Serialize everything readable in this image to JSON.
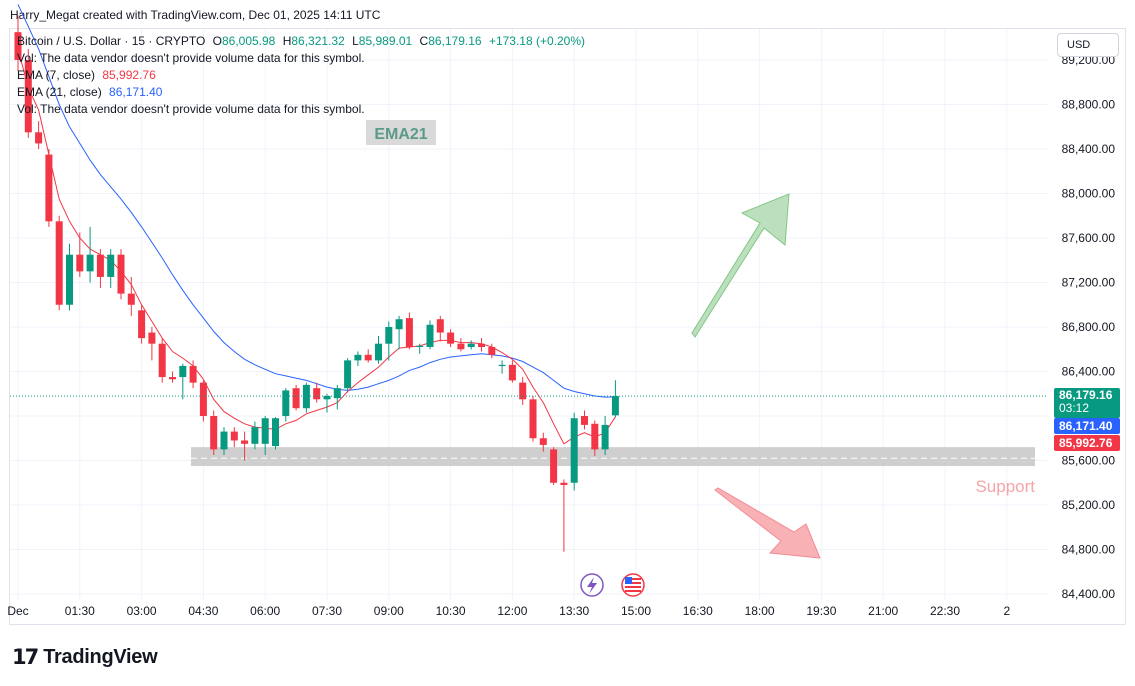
{
  "credit": "Harry_Megat created with TradingView.com, Dec 01, 2025 14:11 UTC",
  "legend": {
    "symbol": "Bitcoin / U.S. Dollar · 15 · CRYPTO",
    "open_label": "O",
    "open": "86,005.98",
    "high_label": "H",
    "high": "86,321.32",
    "low_label": "L",
    "low": "85,989.01",
    "close_label": "C",
    "close": "86,179.16",
    "change": "+173.18 (+0.20%)",
    "vol_note_1": "Vol: The data vendor doesn't provide volume data for this symbol.",
    "ema7_label": "EMA (7, close)",
    "ema7_value": "85,992.76",
    "ema21_label": "EMA (21, close)",
    "ema21_value": "86,171.40",
    "vol_note_2": "Vol: The data vendor doesn't provide volume data for this symbol."
  },
  "toolbar": {
    "currency_button": "USD"
  },
  "price_tags": {
    "last_price": "86,179.16",
    "countdown": "03:12",
    "ema21": "86,171.40",
    "ema7": "85,992.76"
  },
  "annotations": {
    "ema_label": "EMA21",
    "support_label": "Support"
  },
  "colors": {
    "up": "#089981",
    "down": "#f23645",
    "ema7": "#f23645",
    "ema21": "#2962ff",
    "support_zone": "#c7c7c7",
    "arrow_up": "#a5d6a7",
    "arrow_down": "#f7a4a9"
  },
  "icons": [
    "lightning-event-icon",
    "us-flag-icon"
  ],
  "footer": {
    "logo_mark": "17",
    "logo_text": "TradingView"
  },
  "chart_data": {
    "type": "candlestick",
    "symbol": "Bitcoin / U.S. Dollar",
    "interval": "15",
    "x_ticks": [
      "Dec",
      "01:30",
      "03:00",
      "04:30",
      "06:00",
      "07:30",
      "09:00",
      "10:30",
      "12:00",
      "13:30",
      "15:00",
      "16:30",
      "18:00",
      "19:30",
      "21:00",
      "22:30",
      "2"
    ],
    "y_ticks": [
      89200,
      88800,
      88400,
      88000,
      87600,
      87200,
      86800,
      86400,
      86000,
      85600,
      85200,
      84800,
      84400
    ],
    "y_tick_labels": [
      "89,200.00",
      "88,800.00",
      "88,400.00",
      "88,000.00",
      "87,600.00",
      "87,200.00",
      "86,800.00",
      "86,400.00",
      "86,000.00",
      "85,600.00",
      "85,200.00",
      "84,800.00",
      "84,400.00"
    ],
    "ylim": [
      84380,
      89480
    ],
    "x_start_time": "00:00",
    "candles": [
      {
        "t": "00:00",
        "o": 89450,
        "h": 89600,
        "l": 89100,
        "c": 89200
      },
      {
        "t": "00:15",
        "o": 89200,
        "h": 89300,
        "l": 88500,
        "c": 88550
      },
      {
        "t": "00:30",
        "o": 88550,
        "h": 88650,
        "l": 88400,
        "c": 88450
      },
      {
        "t": "00:45",
        "o": 88350,
        "h": 88400,
        "l": 87700,
        "c": 87750
      },
      {
        "t": "01:00",
        "o": 87750,
        "h": 87800,
        "l": 86950,
        "c": 87000
      },
      {
        "t": "01:15",
        "o": 87000,
        "h": 87550,
        "l": 86950,
        "c": 87450
      },
      {
        "t": "01:30",
        "o": 87450,
        "h": 87650,
        "l": 87250,
        "c": 87300
      },
      {
        "t": "01:45",
        "o": 87300,
        "h": 87700,
        "l": 87200,
        "c": 87450
      },
      {
        "t": "02:00",
        "o": 87450,
        "h": 87500,
        "l": 87150,
        "c": 87250
      },
      {
        "t": "02:15",
        "o": 87250,
        "h": 87500,
        "l": 87150,
        "c": 87450
      },
      {
        "t": "02:30",
        "o": 87450,
        "h": 87500,
        "l": 87050,
        "c": 87100
      },
      {
        "t": "02:45",
        "o": 87100,
        "h": 87250,
        "l": 86900,
        "c": 87000
      },
      {
        "t": "03:00",
        "o": 86950,
        "h": 87000,
        "l": 86650,
        "c": 86700
      },
      {
        "t": "03:15",
        "o": 86750,
        "h": 86800,
        "l": 86500,
        "c": 86650
      },
      {
        "t": "03:30",
        "o": 86650,
        "h": 86700,
        "l": 86300,
        "c": 86350
      },
      {
        "t": "03:45",
        "o": 86350,
        "h": 86400,
        "l": 86300,
        "c": 86330
      },
      {
        "t": "04:00",
        "o": 86350,
        "h": 86470,
        "l": 86150,
        "c": 86450
      },
      {
        "t": "04:15",
        "o": 86450,
        "h": 86500,
        "l": 86250,
        "c": 86300
      },
      {
        "t": "04:30",
        "o": 86300,
        "h": 86320,
        "l": 85950,
        "c": 86000
      },
      {
        "t": "04:45",
        "o": 86000,
        "h": 86050,
        "l": 85650,
        "c": 85700
      },
      {
        "t": "05:00",
        "o": 85700,
        "h": 85900,
        "l": 85650,
        "c": 85860
      },
      {
        "t": "05:15",
        "o": 85860,
        "h": 85900,
        "l": 85720,
        "c": 85780
      },
      {
        "t": "05:30",
        "o": 85780,
        "h": 85860,
        "l": 85600,
        "c": 85750
      },
      {
        "t": "05:45",
        "o": 85750,
        "h": 85950,
        "l": 85700,
        "c": 85900
      },
      {
        "t": "06:00",
        "o": 85750,
        "h": 86000,
        "l": 85650,
        "c": 85980
      },
      {
        "t": "06:15",
        "o": 85730,
        "h": 85990,
        "l": 85700,
        "c": 85980
      },
      {
        "t": "06:30",
        "o": 86000,
        "h": 86250,
        "l": 85950,
        "c": 86230
      },
      {
        "t": "06:45",
        "o": 86250,
        "h": 86280,
        "l": 86050,
        "c": 86070
      },
      {
        "t": "07:00",
        "o": 86070,
        "h": 86300,
        "l": 86030,
        "c": 86280
      },
      {
        "t": "07:15",
        "o": 86250,
        "h": 86300,
        "l": 86120,
        "c": 86150
      },
      {
        "t": "07:30",
        "o": 86150,
        "h": 86200,
        "l": 86030,
        "c": 86180
      },
      {
        "t": "07:45",
        "o": 86160,
        "h": 86280,
        "l": 86060,
        "c": 86250
      },
      {
        "t": "08:00",
        "o": 86250,
        "h": 86520,
        "l": 86220,
        "c": 86500
      },
      {
        "t": "08:15",
        "o": 86500,
        "h": 86580,
        "l": 86450,
        "c": 86550
      },
      {
        "t": "08:30",
        "o": 86550,
        "h": 86600,
        "l": 86480,
        "c": 86500
      },
      {
        "t": "08:45",
        "o": 86500,
        "h": 86720,
        "l": 86470,
        "c": 86650
      },
      {
        "t": "09:00",
        "o": 86650,
        "h": 86850,
        "l": 86500,
        "c": 86800
      },
      {
        "t": "09:15",
        "o": 86780,
        "h": 86900,
        "l": 86600,
        "c": 86870
      },
      {
        "t": "09:30",
        "o": 86880,
        "h": 86930,
        "l": 86600,
        "c": 86620
      },
      {
        "t": "09:45",
        "o": 86620,
        "h": 86650,
        "l": 86560,
        "c": 86630
      },
      {
        "t": "10:00",
        "o": 86620,
        "h": 86860,
        "l": 86600,
        "c": 86820
      },
      {
        "t": "10:15",
        "o": 86870,
        "h": 86900,
        "l": 86670,
        "c": 86750
      },
      {
        "t": "10:30",
        "o": 86750,
        "h": 86780,
        "l": 86620,
        "c": 86650
      },
      {
        "t": "10:45",
        "o": 86650,
        "h": 86700,
        "l": 86580,
        "c": 86600
      },
      {
        "t": "11:00",
        "o": 86620,
        "h": 86680,
        "l": 86600,
        "c": 86650
      },
      {
        "t": "11:15",
        "o": 86650,
        "h": 86700,
        "l": 86580,
        "c": 86620
      },
      {
        "t": "11:30",
        "o": 86620,
        "h": 86650,
        "l": 86520,
        "c": 86550
      },
      {
        "t": "11:45",
        "o": 86450,
        "h": 86500,
        "l": 86380,
        "c": 86460
      },
      {
        "t": "12:00",
        "o": 86460,
        "h": 86500,
        "l": 86300,
        "c": 86320
      },
      {
        "t": "12:15",
        "o": 86300,
        "h": 86350,
        "l": 86100,
        "c": 86150
      },
      {
        "t": "12:30",
        "o": 86150,
        "h": 86180,
        "l": 85770,
        "c": 85800
      },
      {
        "t": "12:45",
        "o": 85800,
        "h": 85850,
        "l": 85680,
        "c": 85740
      },
      {
        "t": "13:00",
        "o": 85700,
        "h": 85720,
        "l": 85380,
        "c": 85400
      },
      {
        "t": "13:15",
        "o": 85400,
        "h": 85430,
        "l": 84780,
        "c": 85380
      },
      {
        "t": "13:30",
        "o": 85400,
        "h": 86030,
        "l": 85330,
        "c": 85980
      },
      {
        "t": "13:45",
        "o": 86000,
        "h": 86050,
        "l": 85880,
        "c": 85920
      },
      {
        "t": "14:00",
        "o": 85930,
        "h": 85960,
        "l": 85640,
        "c": 85700
      },
      {
        "t": "14:15",
        "o": 85700,
        "h": 86000,
        "l": 85650,
        "c": 85920
      },
      {
        "t": "14:30",
        "o": 86005.98,
        "h": 86321.32,
        "l": 85989.01,
        "c": 86179.16
      }
    ],
    "ema7": [
      89300,
      88950,
      88750,
      88350,
      87950,
      87750,
      87600,
      87500,
      87450,
      87400,
      87300,
      87180,
      87000,
      86850,
      86700,
      86580,
      86520,
      86450,
      86330,
      86150,
      86040,
      85980,
      85930,
      85900,
      85890,
      85880,
      85930,
      85960,
      86020,
      86050,
      86080,
      86120,
      86220,
      86300,
      86370,
      86440,
      86530,
      86610,
      86620,
      86630,
      86660,
      86680,
      86680,
      86660,
      86660,
      86650,
      86620,
      86570,
      86510,
      86420,
      86260,
      86120,
      85930,
      85750,
      85810,
      85850,
      85810,
      85850,
      85992.76
    ],
    "ema21": [
      89700,
      89500,
      89300,
      89050,
      88800,
      88600,
      88450,
      88300,
      88170,
      88060,
      87950,
      87830,
      87700,
      87560,
      87420,
      87270,
      87130,
      87000,
      86880,
      86760,
      86660,
      86580,
      86510,
      86460,
      86420,
      86380,
      86360,
      86340,
      86320,
      86290,
      86260,
      86240,
      86230,
      86240,
      86260,
      86290,
      86320,
      86360,
      86410,
      86440,
      86480,
      86510,
      86530,
      86540,
      86550,
      86560,
      86550,
      86540,
      86520,
      86490,
      86440,
      86390,
      86320,
      86250,
      86220,
      86200,
      86180,
      86170,
      86171.4
    ],
    "last_price": 86179.16,
    "support_zone": [
      85550,
      85720
    ],
    "support_mid_line": 85620
  }
}
